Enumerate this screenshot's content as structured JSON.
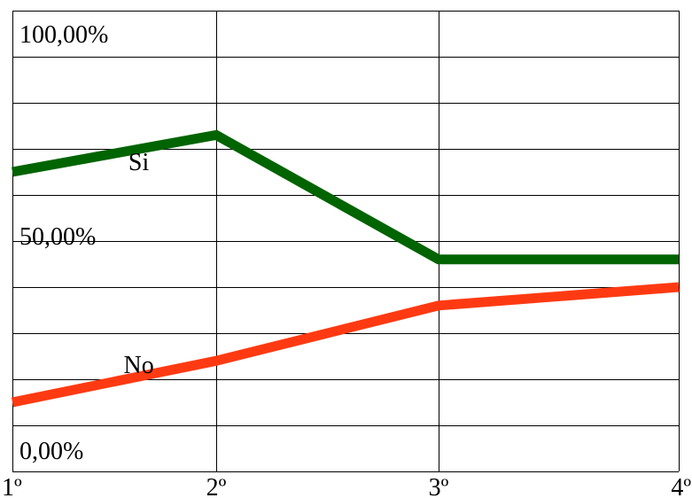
{
  "chart_data": {
    "type": "line",
    "categories": [
      "1º",
      "2º",
      "3º",
      "4º"
    ],
    "x_tick_labels": [
      "1º",
      "2º",
      "3º",
      "4º"
    ],
    "y_tick_labels": [
      {
        "value": 100,
        "label": "100,00%"
      },
      {
        "value": 50,
        "label": "50,00%"
      },
      {
        "value": 0,
        "label": "0,00%"
      }
    ],
    "ylim": [
      0,
      100
    ],
    "y_gridline_step": 10,
    "grid": true,
    "series": [
      {
        "name": "Si",
        "values": [
          65,
          73,
          46,
          46
        ],
        "color": "#006400"
      },
      {
        "name": "No",
        "values": [
          15,
          24,
          36,
          40
        ],
        "color": "#ff3a12"
      }
    ]
  }
}
